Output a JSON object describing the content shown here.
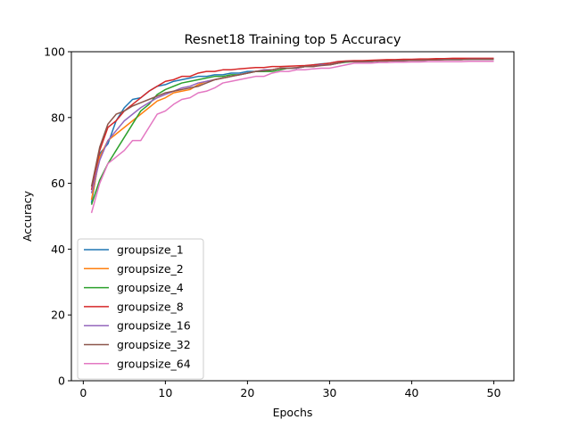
{
  "chart_data": {
    "type": "line",
    "title": "Resnet18 Training top 5 Accuracy",
    "xlabel": "Epochs",
    "ylabel": "Accuracy",
    "xlim": [
      -1.45,
      52.45
    ],
    "ylim": [
      0,
      100
    ],
    "xticks": [
      0,
      10,
      20,
      30,
      40,
      50
    ],
    "yticks": [
      0,
      20,
      40,
      60,
      80,
      100
    ],
    "legend_position": "lower-left",
    "grid": false,
    "x": [
      1,
      2,
      3,
      4,
      5,
      6,
      7,
      8,
      9,
      10,
      11,
      12,
      13,
      14,
      15,
      16,
      17,
      18,
      19,
      20,
      21,
      22,
      23,
      24,
      25,
      26,
      27,
      28,
      29,
      30,
      31,
      32,
      33,
      34,
      35,
      36,
      37,
      38,
      39,
      40,
      41,
      42,
      43,
      44,
      45,
      46,
      47,
      48,
      49,
      50
    ],
    "series": [
      {
        "name": "groupsize_1",
        "color": "#1f77b4",
        "values": [
          54,
          69,
          72,
          79,
          83,
          85.5,
          86,
          88,
          89.5,
          90,
          91,
          91.5,
          92,
          92.5,
          92.5,
          93,
          93,
          93.5,
          93.5,
          94,
          94,
          94,
          94.5,
          95,
          95,
          95,
          95.5,
          96,
          96.3,
          96.5,
          97,
          97,
          97,
          97,
          97.2,
          97.2,
          97.4,
          97.4,
          97.6,
          97.6,
          97.6,
          97.6,
          97.7,
          97.8,
          97.8,
          97.8,
          97.9,
          97.9,
          97.9,
          97.9
        ]
      },
      {
        "name": "groupsize_2",
        "color": "#ff7f0e",
        "values": [
          55,
          68,
          73,
          75,
          77,
          79,
          81,
          83,
          85,
          86,
          87.5,
          88,
          88.5,
          90,
          91,
          91.5,
          92,
          92.5,
          93,
          93.5,
          94,
          94.5,
          94.5,
          95,
          95,
          95,
          95.5,
          95.5,
          96,
          96,
          96.5,
          97,
          97,
          97,
          97,
          97.2,
          97.2,
          97.4,
          97.4,
          97.5,
          97.5,
          97.5,
          97.6,
          97.6,
          97.7,
          97.7,
          97.7,
          97.8,
          97.8,
          97.8
        ]
      },
      {
        "name": "groupsize_4",
        "color": "#2ca02c",
        "values": [
          53.5,
          61,
          66,
          70,
          74,
          78,
          82,
          84,
          87,
          88.5,
          89.5,
          90.5,
          91,
          91.5,
          92,
          92.5,
          92.5,
          93,
          93,
          93.5,
          94,
          94,
          94,
          94.5,
          95,
          95,
          95.5,
          95.5,
          96,
          96,
          96.5,
          96.8,
          97,
          97,
          97,
          97.2,
          97.2,
          97.3,
          97.3,
          97.4,
          97.4,
          97.5,
          97.5,
          97.6,
          97.6,
          97.6,
          97.7,
          97.7,
          97.7,
          97.7
        ]
      },
      {
        "name": "groupsize_8",
        "color": "#d62728",
        "values": [
          58,
          70,
          77,
          79,
          82,
          84,
          86,
          88,
          89.5,
          91,
          91.5,
          92.5,
          92.5,
          93.5,
          94,
          94,
          94.5,
          94.5,
          94.8,
          95,
          95.2,
          95.2,
          95.5,
          95.5,
          95.6,
          95.7,
          95.8,
          96,
          96.2,
          96.5,
          97,
          97.2,
          97.3,
          97.3,
          97.4,
          97.5,
          97.6,
          97.6,
          97.7,
          97.7,
          97.8,
          97.8,
          97.9,
          97.9,
          98,
          98,
          98,
          98,
          98,
          98
        ]
      },
      {
        "name": "groupsize_16",
        "color": "#9467bd",
        "values": [
          57,
          67,
          73,
          76,
          79,
          81,
          83,
          84.5,
          86,
          87,
          88,
          89,
          89.5,
          90.5,
          91,
          91.5,
          92,
          92.5,
          93,
          93.5,
          94,
          94.5,
          94.5,
          95,
          95,
          95,
          95.5,
          95.5,
          96,
          96,
          96.5,
          97,
          97,
          97,
          97,
          97.2,
          97.2,
          97.3,
          97.3,
          97.4,
          97.4,
          97.5,
          97.5,
          97.6,
          97.6,
          97.6,
          97.7,
          97.7,
          97.7,
          97.7
        ]
      },
      {
        "name": "groupsize_32",
        "color": "#8c564b",
        "values": [
          59,
          71,
          78,
          81,
          82,
          83.5,
          84.5,
          85.5,
          86.5,
          87.5,
          88,
          88.5,
          89,
          89.5,
          90.5,
          91.5,
          92,
          92.5,
          93,
          93.5,
          94,
          94.2,
          94.5,
          95,
          95,
          95.2,
          95.5,
          95.5,
          95.8,
          96,
          96.5,
          97,
          97,
          97,
          97.1,
          97.2,
          97.2,
          97.3,
          97.3,
          97.4,
          97.4,
          97.5,
          97.5,
          97.6,
          97.6,
          97.6,
          97.7,
          97.7,
          97.7,
          97.7
        ]
      },
      {
        "name": "groupsize_64",
        "color": "#e377c2",
        "values": [
          51,
          60,
          66,
          68,
          70,
          73,
          73,
          77,
          81,
          82,
          84,
          85.5,
          86,
          87.5,
          88,
          89,
          90.5,
          91,
          91.5,
          92,
          92.5,
          92.5,
          93.5,
          94,
          94,
          94.5,
          94.5,
          94.8,
          95,
          95,
          95.5,
          96,
          96.5,
          96.5,
          96.5,
          96.7,
          96.7,
          96.8,
          96.8,
          96.9,
          96.9,
          97,
          97,
          97,
          97,
          97,
          97.1,
          97.1,
          97.1,
          97.1
        ]
      }
    ]
  }
}
